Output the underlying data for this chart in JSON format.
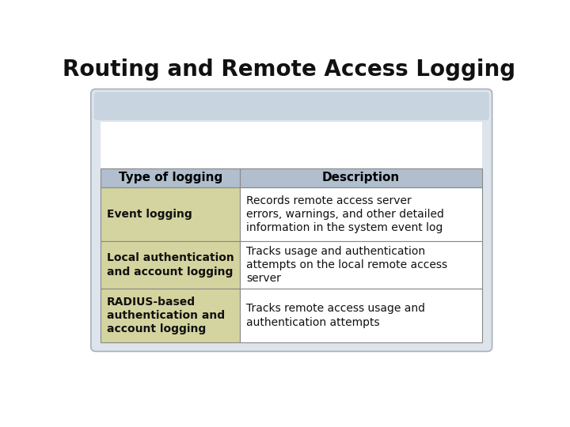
{
  "title": "Routing and Remote Access Logging",
  "title_fontsize": 20,
  "title_fontweight": "bold",
  "background_color": "#ffffff",
  "card_outer_bg": "#dde4ec",
  "card_outer_edge": "#aab0ba",
  "card_top_band_bg": "#c8d4e0",
  "card_inner_bg": "#ffffff",
  "card_bottom_bg": "#dde4ec",
  "header_bg": "#b0bece",
  "header_text_color": "#000000",
  "left_col_bg": "#d4d4a0",
  "right_col_bg": "#ffffff",
  "col_split": 0.365,
  "headers": [
    "Type of logging",
    "Description"
  ],
  "rows": [
    {
      "left": "Event logging",
      "right": "Records remote access server\nerrors, warnings, and other detailed\ninformation in the system event log"
    },
    {
      "left": "Local authentication\nand account logging",
      "right": "Tracks usage and authentication\nattempts on the local remote access\nserver"
    },
    {
      "left": "RADIUS-based\nauthentication and\naccount logging",
      "right": "Tracks remote access usage and\nauthentication attempts"
    }
  ],
  "cell_fontsize": 10,
  "header_fontsize": 11
}
